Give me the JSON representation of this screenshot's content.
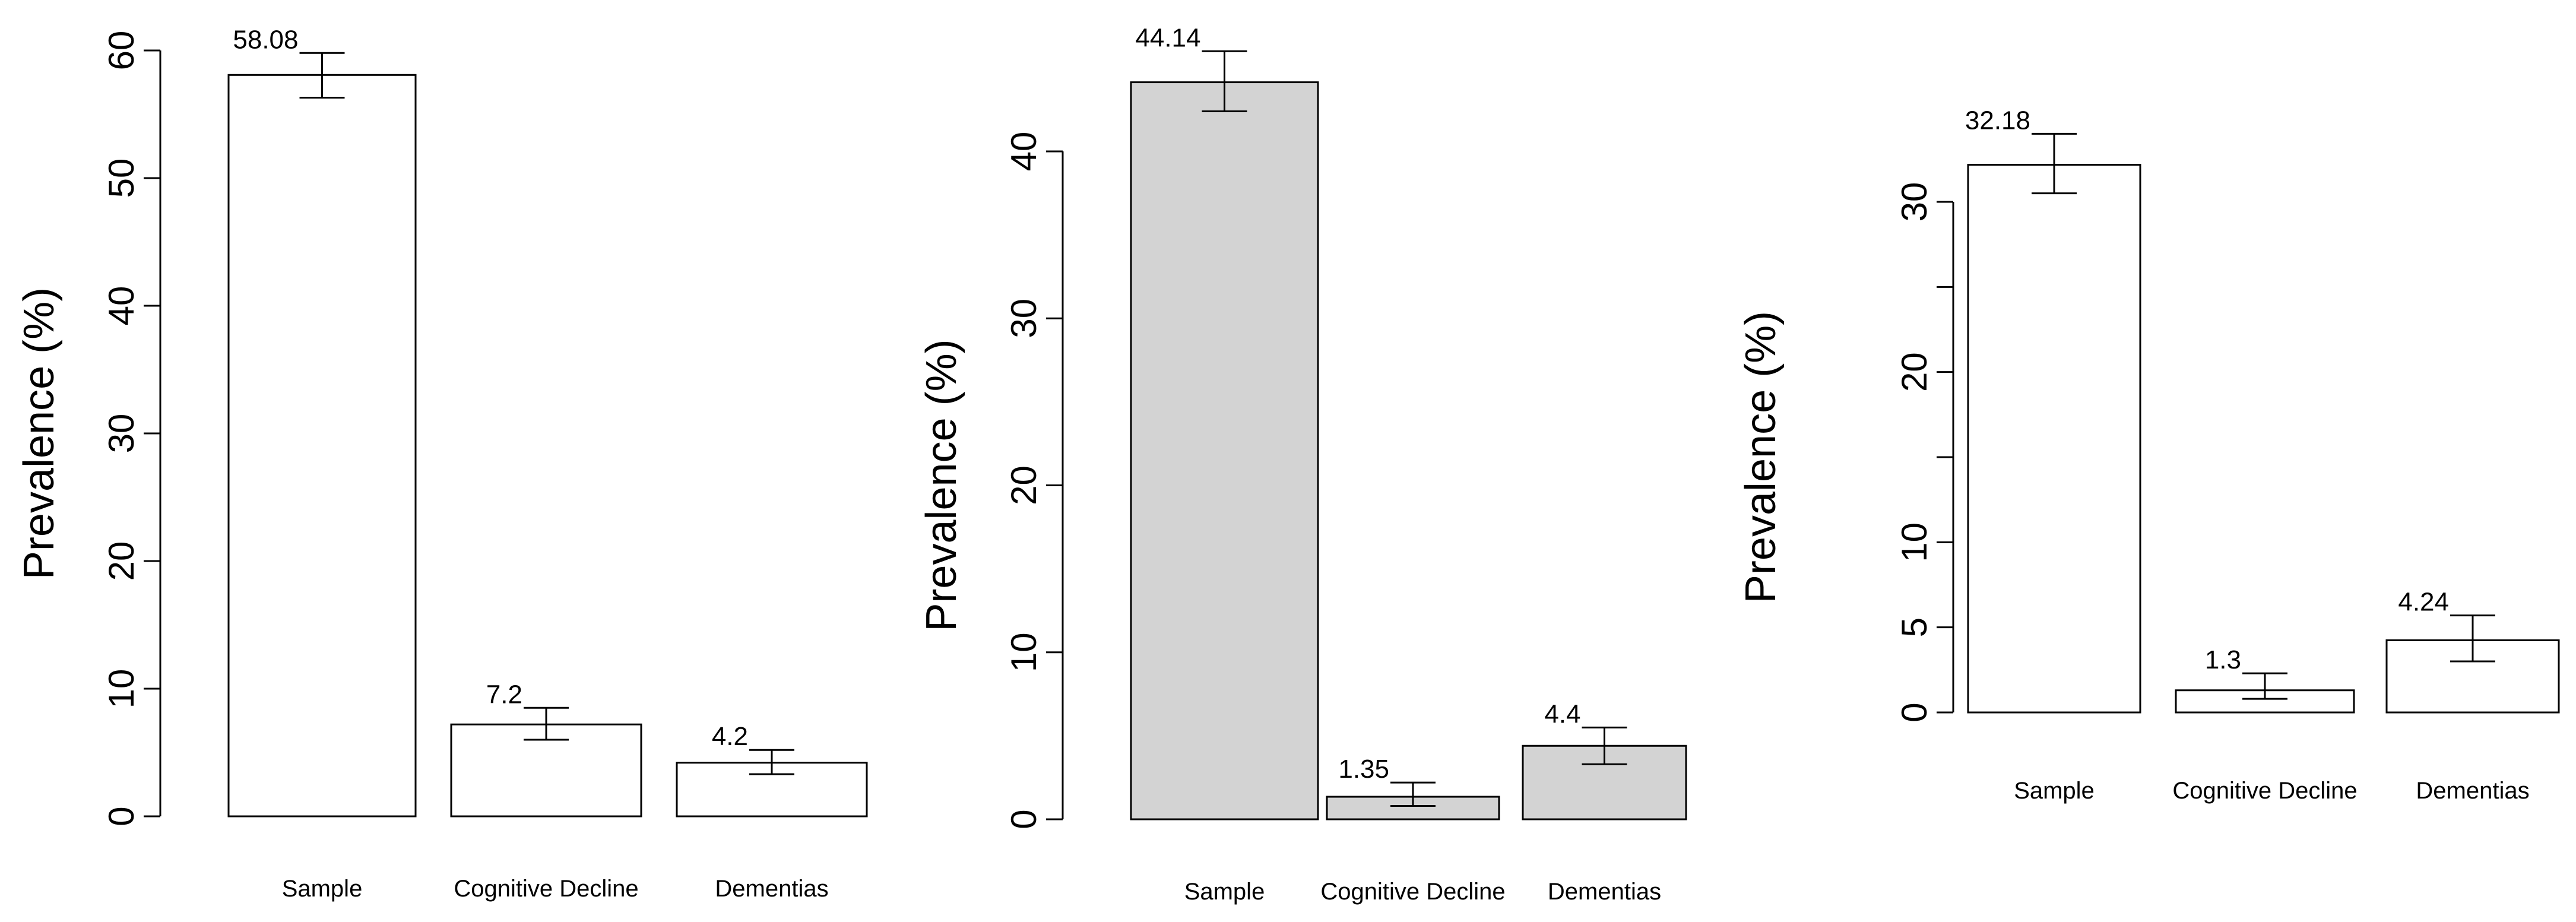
{
  "chart_data": [
    {
      "type": "bar",
      "ylabel": "Prevalence (%)",
      "categories": [
        "Sample",
        "Cognitive Decline",
        "Dementias"
      ],
      "values": [
        58.08,
        7.2,
        4.2
      ],
      "value_labels": [
        "58.08",
        "7.2",
        "4.2"
      ],
      "error_low": [
        56.3,
        6.0,
        3.3
      ],
      "error_high": [
        59.8,
        8.5,
        5.2
      ],
      "ylim": [
        0,
        60
      ],
      "yticks": [
        0,
        10,
        20,
        30,
        40,
        50,
        60
      ],
      "ytick_labels": [
        "0",
        "10",
        "20",
        "30",
        "40",
        "50",
        "60"
      ],
      "bar_color": "#ffffff"
    },
    {
      "type": "bar",
      "ylabel": "Prevalence (%)",
      "categories": [
        "Sample",
        "Cognitive Decline",
        "Dementias"
      ],
      "values": [
        44.14,
        1.35,
        4.4
      ],
      "value_labels": [
        "44.14",
        "1.35",
        "4.4"
      ],
      "error_low": [
        42.4,
        0.8,
        3.3
      ],
      "error_high": [
        46.0,
        2.2,
        5.5
      ],
      "ylim": [
        0,
        40
      ],
      "yticks": [
        0,
        10,
        20,
        30,
        40
      ],
      "ytick_labels": [
        "0",
        "10",
        "20",
        "30",
        "40"
      ],
      "bar_color": "#d3d3d3"
    },
    {
      "type": "bar",
      "ylabel": "Prevalence (%)",
      "categories": [
        "Sample",
        "Cognitive Decline",
        "Dementias"
      ],
      "values": [
        32.18,
        1.3,
        4.24
      ],
      "value_labels": [
        "32.18",
        "1.3",
        "4.24"
      ],
      "error_low": [
        30.5,
        0.8,
        3.0
      ],
      "error_high": [
        34.0,
        2.3,
        5.7
      ],
      "ylim": [
        0,
        30
      ],
      "yticks": [
        0,
        5,
        10,
        15,
        20,
        25,
        30
      ],
      "ytick_labels": [
        "0",
        "5",
        "10",
        "",
        "20",
        "",
        "30"
      ],
      "bar_color": "#ffffff"
    }
  ]
}
